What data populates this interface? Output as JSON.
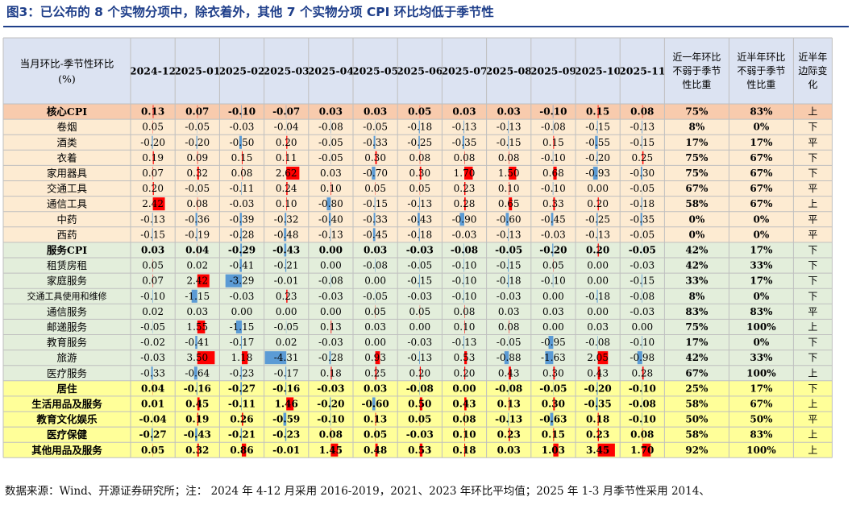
{
  "title": "图3：已公布的 8 个实物分项中，除衣着外，其他 7 个实物分项 CPI 环比均低于季节性",
  "source_note": "数据来源：Wind、开源证券研究所；注： 2024 年 4-12 月采用 2016-2019，2021、2023 年环比平均值；2025 年 1-3 月季节性采用 2014、",
  "colors": {
    "header_bg": "#dce3f2",
    "core_bg": "#f8cbad",
    "goods_bg": "#fdebd2",
    "services_bg": "#e3eedb",
    "category_bg": "#ffff99",
    "bar_pos": "#ff0000",
    "bar_neg": "#5b9bd5",
    "grid": "#bfbfbf"
  },
  "chart_data": {
    "type": "table",
    "row_header_label": "当月环比-季节性环比(%)",
    "columns": [
      "2024-12",
      "2025-01",
      "2025-02",
      "2025-03",
      "2025-04",
      "2025-05",
      "2025-06",
      "2025-07",
      "2025-08",
      "2025-09",
      "2025-10",
      "2025-11"
    ],
    "summary_columns": [
      "近一年环比不弱于季节性比重",
      "近半年环比不弱于季节性比重",
      "近半年边际变化"
    ],
    "rows": [
      {
        "name": "核心CPI",
        "group": "core",
        "bold": true,
        "values": [
          0.13,
          0.07,
          -0.1,
          -0.07,
          0.03,
          0.03,
          0.05,
          0.03,
          0.03,
          -0.1,
          0.15,
          0.08
        ],
        "summary": [
          "75%",
          "83%",
          "上"
        ]
      },
      {
        "name": "卷烟",
        "group": "goods",
        "values": [
          0.05,
          -0.05,
          -0.03,
          -0.04,
          -0.08,
          -0.05,
          -0.18,
          -0.13,
          -0.13,
          -0.08,
          -0.15,
          -0.13
        ],
        "summary": [
          "8%",
          "0%",
          "下"
        ]
      },
      {
        "name": "酒类",
        "group": "goods",
        "values": [
          -0.2,
          -0.2,
          -0.5,
          0.2,
          -0.05,
          -0.33,
          -0.25,
          -0.35,
          -0.15,
          0.15,
          -0.55,
          -0.15
        ],
        "summary": [
          "17%",
          "17%",
          "平"
        ]
      },
      {
        "name": "衣着",
        "group": "goods",
        "values": [
          0.19,
          0.09,
          0.15,
          0.11,
          -0.05,
          0.3,
          0.08,
          0.08,
          0.08,
          -0.1,
          -0.2,
          0.25
        ],
        "summary": [
          "75%",
          "67%",
          "下"
        ]
      },
      {
        "name": "家用器具",
        "group": "goods",
        "values": [
          0.07,
          0.32,
          0.08,
          2.62,
          0.03,
          -0.7,
          0.3,
          1.7,
          1.5,
          0.68,
          -0.93,
          -0.3
        ],
        "summary": [
          "75%",
          "67%",
          "下"
        ]
      },
      {
        "name": "交通工具",
        "group": "goods",
        "values": [
          0.2,
          -0.05,
          -0.11,
          0.24,
          0.1,
          0.05,
          0.05,
          0.23,
          0.1,
          -0.1,
          0.0,
          -0.05
        ],
        "summary": [
          "67%",
          "67%",
          "平"
        ]
      },
      {
        "name": "通信工具",
        "group": "goods",
        "values": [
          2.42,
          0.08,
          -0.03,
          0.1,
          -0.8,
          -0.15,
          -0.13,
          0.28,
          0.65,
          0.33,
          0.2,
          -0.18
        ],
        "summary": [
          "58%",
          "67%",
          "上"
        ]
      },
      {
        "name": "中药",
        "group": "goods",
        "values": [
          -0.13,
          -0.36,
          -0.39,
          -0.32,
          -0.4,
          -0.33,
          -0.43,
          -0.9,
          -0.6,
          -0.45,
          -0.25,
          -0.35
        ],
        "summary": [
          "0%",
          "0%",
          "平"
        ]
      },
      {
        "name": "西药",
        "group": "goods",
        "values": [
          -0.15,
          -0.19,
          -0.28,
          -0.48,
          -0.13,
          -0.45,
          -0.18,
          -0.03,
          -0.13,
          -0.03,
          -0.13,
          -0.05
        ],
        "summary": [
          "0%",
          "0%",
          "平"
        ]
      },
      {
        "name": "服务CPI",
        "group": "services",
        "bold": true,
        "values": [
          0.03,
          0.04,
          -0.29,
          -0.43,
          0.0,
          0.03,
          -0.03,
          -0.08,
          -0.05,
          -0.2,
          0.2,
          -0.05
        ],
        "summary": [
          "42%",
          "17%",
          "下"
        ]
      },
      {
        "name": "租赁房租",
        "group": "services",
        "values": [
          0.05,
          0.02,
          -0.41,
          -0.21,
          0.0,
          -0.08,
          -0.05,
          -0.1,
          -0.15,
          0.05,
          0.0,
          -0.03
        ],
        "summary": [
          "42%",
          "33%",
          "下"
        ]
      },
      {
        "name": "家庭服务",
        "group": "services",
        "values": [
          0.07,
          2.42,
          -3.29,
          -0.01,
          -0.08,
          0.0,
          -0.15,
          -0.1,
          -0.18,
          -0.1,
          0.0,
          -0.15
        ],
        "summary": [
          "33%",
          "17%",
          "下"
        ]
      },
      {
        "name": "交通工具使用和维修",
        "group": "services",
        "values": [
          -0.1,
          -1.15,
          -0.03,
          0.23,
          -0.03,
          -0.05,
          -0.03,
          -0.1,
          -0.03,
          0.0,
          -0.18,
          -0.08
        ],
        "summary": [
          "8%",
          "0%",
          "下"
        ]
      },
      {
        "name": "通信服务",
        "group": "services",
        "values": [
          0.02,
          0.03,
          0.0,
          0.0,
          0.0,
          0.05,
          0.05,
          0.08,
          0.03,
          0.03,
          0.0,
          -0.03
        ],
        "summary": [
          "83%",
          "83%",
          "平"
        ]
      },
      {
        "name": "邮递服务",
        "group": "services",
        "values": [
          -0.05,
          1.55,
          -1.15,
          -0.05,
          0.13,
          0.03,
          0.0,
          0.1,
          0.08,
          0.0,
          0.03,
          0.0
        ],
        "summary": [
          "75%",
          "100%",
          "上"
        ]
      },
      {
        "name": "教育服务",
        "group": "services",
        "values": [
          -0.02,
          -0.41,
          -0.17,
          0.02,
          -0.03,
          0.0,
          -0.03,
          -0.13,
          -0.05,
          -0.95,
          -0.08,
          -0.1
        ],
        "summary": [
          "17%",
          "0%",
          "下"
        ]
      },
      {
        "name": "旅游",
        "group": "services",
        "values": [
          -0.03,
          3.5,
          1.18,
          -4.31,
          -0.28,
          0.93,
          -0.13,
          0.53,
          -0.88,
          -1.63,
          2.05,
          -0.98
        ],
        "summary": [
          "42%",
          "33%",
          "下"
        ]
      },
      {
        "name": "医疗服务",
        "group": "services",
        "values": [
          -0.33,
          -0.64,
          -0.23,
          -0.17,
          0.18,
          0.25,
          0.2,
          0.2,
          0.43,
          0.3,
          0.43,
          0.28
        ],
        "summary": [
          "67%",
          "100%",
          "上"
        ]
      },
      {
        "name": "居住",
        "group": "category",
        "bold": true,
        "values": [
          0.04,
          -0.16,
          -0.27,
          -0.16,
          -0.03,
          0.03,
          -0.08,
          0.0,
          -0.08,
          -0.05,
          -0.2,
          -0.1
        ],
        "summary": [
          "25%",
          "17%",
          "下"
        ]
      },
      {
        "name": "生活用品及服务",
        "group": "category",
        "bold": true,
        "values": [
          0.01,
          0.45,
          -0.11,
          1.46,
          -0.2,
          -0.6,
          0.5,
          0.43,
          0.13,
          0.3,
          -0.35,
          -0.08
        ],
        "summary": [
          "58%",
          "67%",
          "上"
        ]
      },
      {
        "name": "教育文化娱乐",
        "group": "category",
        "bold": true,
        "values": [
          -0.04,
          0.19,
          0.26,
          -0.59,
          -0.1,
          0.13,
          0.05,
          0.08,
          -0.13,
          -0.63,
          0.18,
          -0.1
        ],
        "summary": [
          "50%",
          "50%",
          "平"
        ]
      },
      {
        "name": "医疗保健",
        "group": "category",
        "bold": true,
        "values": [
          -0.27,
          -0.43,
          -0.21,
          -0.23,
          0.08,
          0.05,
          -0.03,
          0.1,
          0.23,
          0.15,
          0.23,
          0.08
        ],
        "summary": [
          "58%",
          "83%",
          "上"
        ]
      },
      {
        "name": "其他用品及服务",
        "group": "category",
        "bold": true,
        "values": [
          0.05,
          0.32,
          0.86,
          -0.01,
          1.45,
          0.48,
          0.53,
          0.18,
          0.03,
          1.03,
          3.45,
          1.7
        ],
        "summary": [
          "92%",
          "100%",
          "上"
        ]
      }
    ]
  }
}
